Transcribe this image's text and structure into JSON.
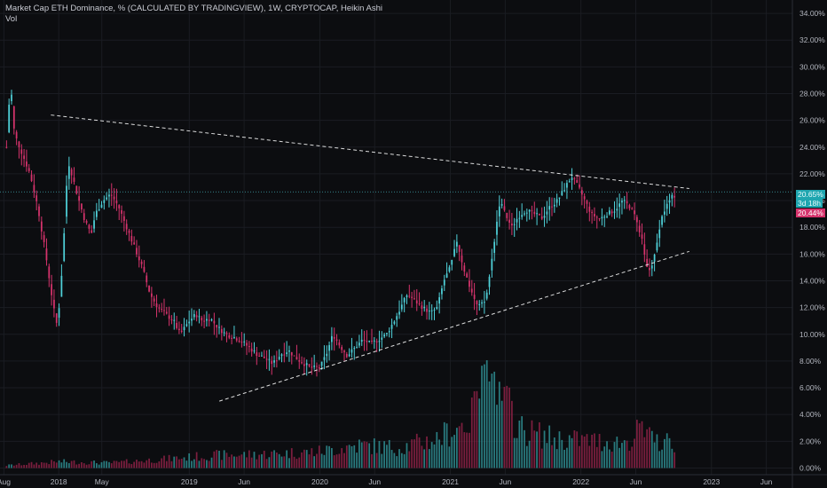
{
  "legend": {
    "title": "Market Cap ETH Dominance, % (CALCULATED BY TRADINGVIEW), 1W, CRYPTOCAP, Heikin Ashi",
    "vol_label": "Vol"
  },
  "colors": {
    "background": "#0c0d10",
    "up": "#4fd1d9",
    "down": "#d6336c",
    "vol_up": "#2f8f93",
    "vol_down": "#8f2246",
    "trendline": "#ffffff",
    "grid": "#1a1c22"
  },
  "badges": {
    "price_current": "20.65%",
    "countdown": "3d 18h",
    "price_close": "20.44%"
  },
  "chart_data": {
    "type": "candlestick",
    "style": "Heikin Ashi",
    "interval": "1W",
    "y_unit": "%",
    "ylim": [
      -0.5,
      35
    ],
    "y_ticks": [
      "34.00%",
      "32.00%",
      "30.00%",
      "28.00%",
      "26.00%",
      "24.00%",
      "22.00%",
      "20.00%",
      "18.00%",
      "16.00%",
      "14.00%",
      "12.00%",
      "10.00%",
      "8.00%",
      "6.00%",
      "4.00%",
      "2.00%",
      "0.00%"
    ],
    "x_ticks": [
      "Aug",
      "2018",
      "May",
      "2019",
      "Jun",
      "2020",
      "Jun",
      "2021",
      "Jun",
      "2022",
      "Jun",
      "2023",
      "Jun"
    ],
    "x_tick_positions": [
      2017.58,
      2018.0,
      2018.33,
      2019.0,
      2019.42,
      2020.0,
      2020.42,
      2021.0,
      2021.42,
      2022.0,
      2022.42,
      2023.0,
      2023.42
    ],
    "xlim": [
      2017.55,
      2023.62
    ],
    "grid": true,
    "price_line": 20.65,
    "close_anchors": [
      [
        2017.6,
        24.0
      ],
      [
        2017.63,
        29.0
      ],
      [
        2017.66,
        25.0
      ],
      [
        2017.72,
        23.5
      ],
      [
        2017.78,
        22.0
      ],
      [
        2017.84,
        19.5
      ],
      [
        2017.9,
        16.0
      ],
      [
        2017.96,
        12.0
      ],
      [
        2017.99,
        10.5
      ],
      [
        2018.03,
        15.5
      ],
      [
        2018.07,
        23.0
      ],
      [
        2018.1,
        22.0
      ],
      [
        2018.14,
        20.5
      ],
      [
        2018.2,
        18.5
      ],
      [
        2018.25,
        17.5
      ],
      [
        2018.28,
        19.0
      ],
      [
        2018.34,
        20.0
      ],
      [
        2018.4,
        20.5
      ],
      [
        2018.46,
        19.5
      ],
      [
        2018.52,
        18.0
      ],
      [
        2018.58,
        16.5
      ],
      [
        2018.64,
        15.0
      ],
      [
        2018.7,
        13.0
      ],
      [
        2018.76,
        12.0
      ],
      [
        2018.82,
        11.5
      ],
      [
        2018.88,
        11.0
      ],
      [
        2018.93,
        10.0
      ],
      [
        2019.0,
        11.0
      ],
      [
        2019.05,
        11.5
      ],
      [
        2019.1,
        11.0
      ],
      [
        2019.16,
        11.2
      ],
      [
        2019.22,
        10.5
      ],
      [
        2019.28,
        10.0
      ],
      [
        2019.34,
        9.8
      ],
      [
        2019.4,
        9.5
      ],
      [
        2019.46,
        9.0
      ],
      [
        2019.52,
        8.5
      ],
      [
        2019.58,
        8.2
      ],
      [
        2019.64,
        7.8
      ],
      [
        2019.7,
        8.5
      ],
      [
        2019.76,
        8.8
      ],
      [
        2019.82,
        8.2
      ],
      [
        2019.88,
        7.8
      ],
      [
        2019.93,
        7.5
      ],
      [
        2020.0,
        7.5
      ],
      [
        2020.05,
        8.5
      ],
      [
        2020.1,
        10.0
      ],
      [
        2020.15,
        9.2
      ],
      [
        2020.21,
        8.4
      ],
      [
        2020.27,
        9.0
      ],
      [
        2020.33,
        9.6
      ],
      [
        2020.39,
        9.3
      ],
      [
        2020.45,
        9.6
      ],
      [
        2020.51,
        10.0
      ],
      [
        2020.57,
        11.0
      ],
      [
        2020.62,
        12.0
      ],
      [
        2020.67,
        13.0
      ],
      [
        2020.73,
        12.5
      ],
      [
        2020.79,
        12.0
      ],
      [
        2020.85,
        11.6
      ],
      [
        2020.9,
        12.0
      ],
      [
        2020.95,
        14.0
      ],
      [
        2021.0,
        15.0
      ],
      [
        2021.05,
        17.0
      ],
      [
        2021.1,
        15.0
      ],
      [
        2021.15,
        13.5
      ],
      [
        2021.21,
        12.0
      ],
      [
        2021.27,
        12.5
      ],
      [
        2021.31,
        15.0
      ],
      [
        2021.35,
        18.0
      ],
      [
        2021.38,
        20.0
      ],
      [
        2021.42,
        19.0
      ],
      [
        2021.47,
        18.0
      ],
      [
        2021.52,
        18.8
      ],
      [
        2021.58,
        19.3
      ],
      [
        2021.64,
        19.0
      ],
      [
        2021.7,
        18.7
      ],
      [
        2021.76,
        19.5
      ],
      [
        2021.82,
        20.0
      ],
      [
        2021.88,
        21.0
      ],
      [
        2021.93,
        21.8
      ],
      [
        2021.98,
        21.0
      ],
      [
        2022.03,
        20.0
      ],
      [
        2022.08,
        19.0
      ],
      [
        2022.14,
        18.6
      ],
      [
        2022.2,
        19.0
      ],
      [
        2022.26,
        19.3
      ],
      [
        2022.32,
        20.0
      ],
      [
        2022.38,
        19.5
      ],
      [
        2022.43,
        18.5
      ],
      [
        2022.47,
        17.0
      ],
      [
        2022.5,
        15.0
      ],
      [
        2022.53,
        14.8
      ],
      [
        2022.57,
        16.0
      ],
      [
        2022.61,
        18.5
      ],
      [
        2022.65,
        19.5
      ],
      [
        2022.69,
        20.2
      ],
      [
        2022.73,
        20.44
      ]
    ],
    "volume_anchors": [
      [
        2017.6,
        0.2
      ],
      [
        2018.0,
        0.5
      ],
      [
        2018.4,
        0.4
      ],
      [
        2018.8,
        0.7
      ],
      [
        2019.2,
        1.0
      ],
      [
        2019.6,
        1.1
      ],
      [
        2020.0,
        1.3
      ],
      [
        2020.3,
        1.8
      ],
      [
        2020.6,
        1.6
      ],
      [
        2020.9,
        2.3
      ],
      [
        2021.1,
        3.5
      ],
      [
        2021.25,
        4.5
      ],
      [
        2021.4,
        5.5
      ],
      [
        2021.55,
        3.0
      ],
      [
        2021.8,
        2.3
      ],
      [
        2022.0,
        2.2
      ],
      [
        2022.3,
        2.0
      ],
      [
        2022.5,
        2.5
      ],
      [
        2022.73,
        1.8
      ]
    ],
    "volume_peaks": [
      [
        2021.2,
        6.0
      ],
      [
        2021.26,
        8.5
      ],
      [
        2021.32,
        7.5
      ],
      [
        2021.37,
        5.5
      ],
      [
        2022.45,
        3.8
      ]
    ],
    "trendlines": [
      {
        "name": "resistance",
        "from": [
          2017.94,
          26.4
        ],
        "to": [
          2022.83,
          20.9
        ]
      },
      {
        "name": "support",
        "from": [
          2019.23,
          5.0
        ],
        "to": [
          2022.83,
          16.2
        ]
      }
    ]
  }
}
